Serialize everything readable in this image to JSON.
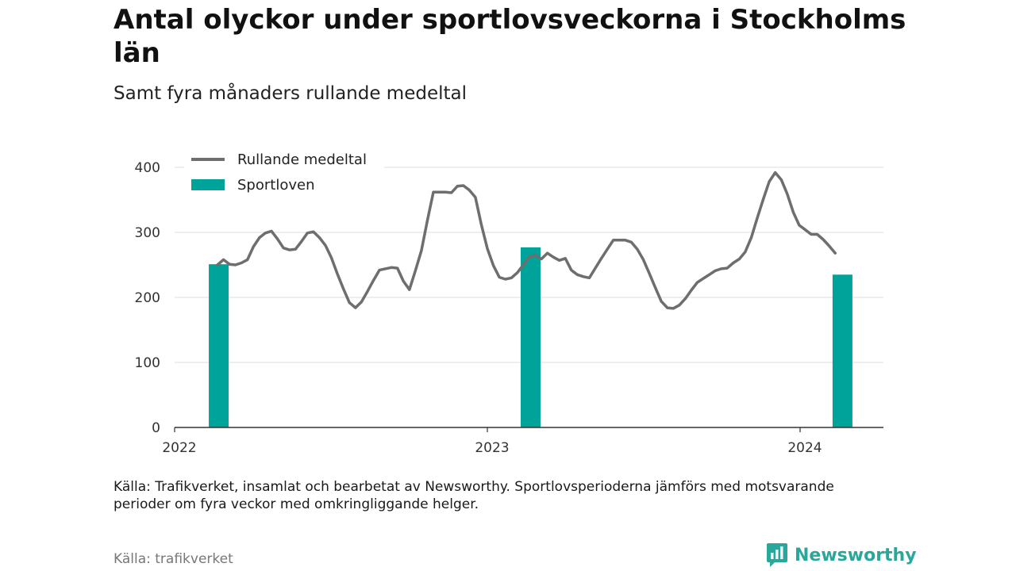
{
  "header": {
    "title": "Antal olyckor under sportlovsveckorna i Stockholms län",
    "subtitle": "Samt fyra månaders rullande medeltal"
  },
  "footer": {
    "note": "Källa: Trafikverket, insamlat och bearbetat av Newsworthy. Sportlovsperioderna jämförs med motsvarande perioder om fyra veckor med omkringliggande helger.",
    "source": "Källa: trafikverket",
    "brand": "Newsworthy",
    "brand_icon": "newsworthy-logo-icon"
  },
  "colors": {
    "line": "#6e6e6e",
    "bar": "#00a39a",
    "grid": "#dddddd",
    "axis": "#333333"
  },
  "chart_data": {
    "type": "bar+line",
    "ylim": [
      0,
      400
    ],
    "yticks": [
      0,
      100,
      200,
      300,
      400
    ],
    "xticks": [
      "2022",
      "2023",
      "2024"
    ],
    "grid": true,
    "legend_position": "top-left",
    "series": [
      {
        "name": "Rullande medeltal",
        "type": "line",
        "points": [
          [
            "2022-02-20",
            250
          ],
          [
            "2022-02-27",
            258
          ],
          [
            "2022-03-06",
            251
          ],
          [
            "2022-03-13",
            250
          ],
          [
            "2022-03-20",
            253
          ],
          [
            "2022-03-27",
            258
          ],
          [
            "2022-04-03",
            278
          ],
          [
            "2022-04-10",
            292
          ],
          [
            "2022-04-17",
            299
          ],
          [
            "2022-04-24",
            302
          ],
          [
            "2022-05-01",
            290
          ],
          [
            "2022-05-08",
            276
          ],
          [
            "2022-05-15",
            273
          ],
          [
            "2022-05-22",
            274
          ],
          [
            "2022-05-29",
            286
          ],
          [
            "2022-06-05",
            299
          ],
          [
            "2022-06-12",
            301
          ],
          [
            "2022-06-19",
            292
          ],
          [
            "2022-06-26",
            280
          ],
          [
            "2022-07-03",
            261
          ],
          [
            "2022-07-10",
            236
          ],
          [
            "2022-07-17",
            213
          ],
          [
            "2022-07-24",
            192
          ],
          [
            "2022-07-31",
            184
          ],
          [
            "2022-08-07",
            193
          ],
          [
            "2022-08-14",
            209
          ],
          [
            "2022-08-21",
            226
          ],
          [
            "2022-08-28",
            242
          ],
          [
            "2022-09-04",
            244
          ],
          [
            "2022-09-11",
            246
          ],
          [
            "2022-09-18",
            245
          ],
          [
            "2022-09-25",
            225
          ],
          [
            "2022-10-02",
            212
          ],
          [
            "2022-10-09",
            241
          ],
          [
            "2022-10-16",
            272
          ],
          [
            "2022-10-23",
            318
          ],
          [
            "2022-10-30",
            362
          ],
          [
            "2022-11-06",
            362
          ],
          [
            "2022-11-13",
            362
          ],
          [
            "2022-11-20",
            361
          ],
          [
            "2022-11-27",
            371
          ],
          [
            "2022-12-04",
            372
          ],
          [
            "2022-12-11",
            365
          ],
          [
            "2022-12-18",
            354
          ],
          [
            "2022-12-25",
            312
          ],
          [
            "2023-01-01",
            275
          ],
          [
            "2023-01-08",
            249
          ],
          [
            "2023-01-15",
            231
          ],
          [
            "2023-01-22",
            228
          ],
          [
            "2023-01-29",
            230
          ],
          [
            "2023-02-05",
            238
          ],
          [
            "2023-02-12",
            250
          ],
          [
            "2023-02-19",
            262
          ],
          [
            "2023-02-26",
            265
          ],
          [
            "2023-03-05",
            259
          ],
          [
            "2023-03-12",
            268
          ],
          [
            "2023-03-19",
            262
          ],
          [
            "2023-03-26",
            257
          ],
          [
            "2023-04-02",
            260
          ],
          [
            "2023-04-09",
            242
          ],
          [
            "2023-04-16",
            235
          ],
          [
            "2023-04-23",
            232
          ],
          [
            "2023-04-30",
            230
          ],
          [
            "2023-05-07",
            245
          ],
          [
            "2023-05-14",
            260
          ],
          [
            "2023-05-21",
            274
          ],
          [
            "2023-05-28",
            288
          ],
          [
            "2023-06-04",
            288
          ],
          [
            "2023-06-11",
            288
          ],
          [
            "2023-06-18",
            285
          ],
          [
            "2023-06-25",
            274
          ],
          [
            "2023-07-02",
            258
          ],
          [
            "2023-07-09",
            237
          ],
          [
            "2023-07-16",
            215
          ],
          [
            "2023-07-23",
            194
          ],
          [
            "2023-07-30",
            184
          ],
          [
            "2023-08-06",
            183
          ],
          [
            "2023-08-13",
            188
          ],
          [
            "2023-08-20",
            198
          ],
          [
            "2023-08-27",
            211
          ],
          [
            "2023-09-03",
            223
          ],
          [
            "2023-09-10",
            229
          ],
          [
            "2023-09-17",
            235
          ],
          [
            "2023-09-24",
            241
          ],
          [
            "2023-10-01",
            244
          ],
          [
            "2023-10-08",
            245
          ],
          [
            "2023-10-15",
            253
          ],
          [
            "2023-10-22",
            259
          ],
          [
            "2023-10-29",
            270
          ],
          [
            "2023-11-05",
            292
          ],
          [
            "2023-11-12",
            322
          ],
          [
            "2023-11-19",
            351
          ],
          [
            "2023-11-26",
            378
          ],
          [
            "2023-12-03",
            392
          ],
          [
            "2023-12-10",
            381
          ],
          [
            "2023-12-17",
            359
          ],
          [
            "2023-12-24",
            331
          ],
          [
            "2023-12-31",
            311
          ],
          [
            "2024-01-07",
            304
          ],
          [
            "2024-01-14",
            297
          ],
          [
            "2024-01-21",
            297
          ],
          [
            "2024-01-28",
            289
          ],
          [
            "2024-02-04",
            279
          ],
          [
            "2024-02-11",
            268
          ]
        ]
      },
      {
        "name": "Sportloven",
        "type": "bar",
        "points": [
          [
            "2022-02-21",
            251
          ],
          [
            "2023-02-20",
            277
          ],
          [
            "2024-02-19",
            235
          ]
        ]
      }
    ]
  }
}
